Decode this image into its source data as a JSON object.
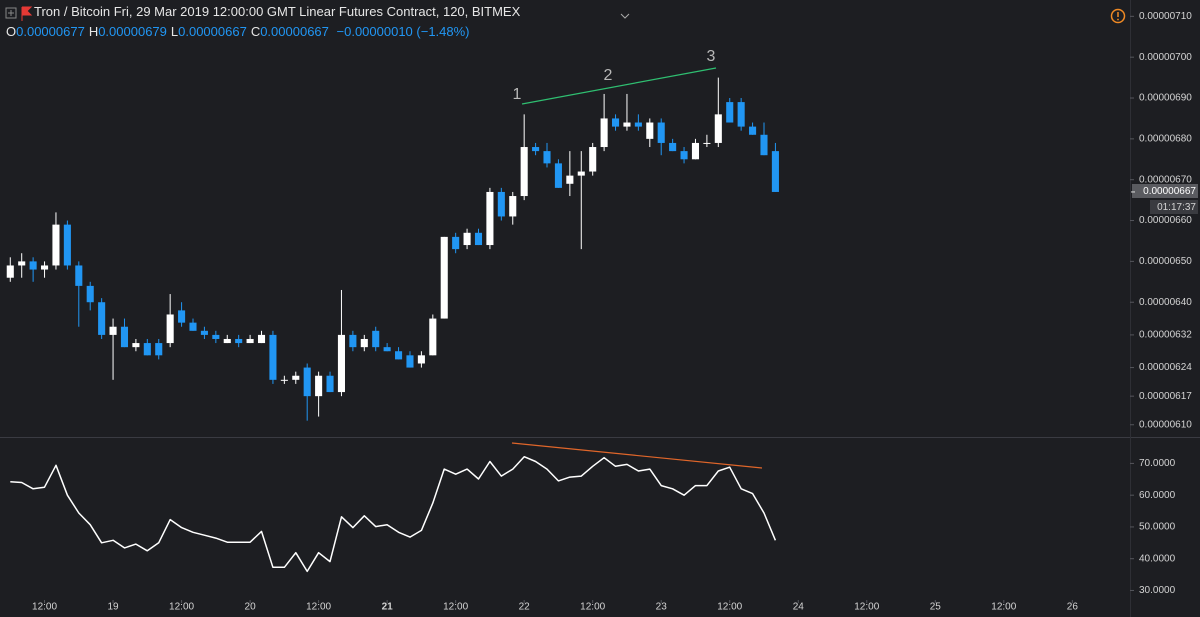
{
  "header": {
    "title": "Tron / Bitcoin Fri, 29 Mar 2019 12:00:00 GMT Linear Futures Contract, 120, BITMEX",
    "ohlc": [
      {
        "label": "O",
        "value": "0.00000677"
      },
      {
        "label": "H",
        "value": "0.00000679"
      },
      {
        "label": "L",
        "value": "0.00000667"
      },
      {
        "label": "C",
        "value": "0.00000667"
      }
    ],
    "change": "−0.00000010 (−1.48%)"
  },
  "chart_data": [
    {
      "type": "candlestick",
      "up_color": "#ffffff",
      "down_color": "#2196f3",
      "annotations": [
        "1",
        "2",
        "3"
      ],
      "last_price": {
        "value": 6.67e-06,
        "label": "0.00000667"
      },
      "countdown": "01:17:37",
      "open": [
        6.46e-06,
        6.49e-06,
        6.5e-06,
        6.48e-06,
        6.49e-06,
        6.59e-06,
        6.49e-06,
        6.44e-06,
        6.4e-06,
        6.32e-06,
        6.34e-06,
        6.29e-06,
        6.3e-06,
        6.3e-06,
        6.3e-06,
        6.38e-06,
        6.35e-06,
        6.33e-06,
        6.32e-06,
        6.3e-06,
        6.31e-06,
        6.3e-06,
        6.3e-06,
        6.32e-06,
        6.21e-06,
        6.21e-06,
        6.24e-06,
        6.17e-06,
        6.22e-06,
        6.18e-06,
        6.32e-06,
        6.29e-06,
        6.33e-06,
        6.29e-06,
        6.28e-06,
        6.27e-06,
        6.25e-06,
        6.27e-06,
        6.36e-06,
        6.56e-06,
        6.54e-06,
        6.57e-06,
        6.54e-06,
        6.67e-06,
        6.61e-06,
        6.66e-06,
        6.78e-06,
        6.77e-06,
        6.74e-06,
        6.69e-06,
        6.71e-06,
        6.72e-06,
        6.78e-06,
        6.85e-06,
        6.83e-06,
        6.84e-06,
        6.8e-06,
        6.84e-06,
        6.79e-06,
        6.77e-06,
        6.75e-06,
        6.79e-06,
        6.79e-06,
        6.89e-06,
        6.89e-06,
        6.83e-06,
        6.81e-06,
        6.77e-06
      ],
      "high": [
        6.51e-06,
        6.52e-06,
        6.51e-06,
        6.5e-06,
        6.62e-06,
        6.6e-06,
        6.5e-06,
        6.45e-06,
        6.41e-06,
        6.36e-06,
        6.36e-06,
        6.31e-06,
        6.31e-06,
        6.31e-06,
        6.42e-06,
        6.4e-06,
        6.36e-06,
        6.34e-06,
        6.33e-06,
        6.32e-06,
        6.32e-06,
        6.32e-06,
        6.33e-06,
        6.33e-06,
        6.22e-06,
        6.23e-06,
        6.25e-06,
        6.23e-06,
        6.23e-06,
        6.43e-06,
        6.33e-06,
        6.32e-06,
        6.34e-06,
        6.3e-06,
        6.29e-06,
        6.28e-06,
        6.28e-06,
        6.37e-06,
        6.56e-06,
        6.57e-06,
        6.58e-06,
        6.58e-06,
        6.68e-06,
        6.68e-06,
        6.67e-06,
        6.86e-06,
        6.79e-06,
        6.79e-06,
        6.75e-06,
        6.77e-06,
        6.77e-06,
        6.79e-06,
        6.91e-06,
        6.86e-06,
        6.91e-06,
        6.86e-06,
        6.85e-06,
        6.85e-06,
        6.8e-06,
        6.78e-06,
        6.8e-06,
        6.81e-06,
        6.95e-06,
        6.9e-06,
        6.9e-06,
        6.84e-06,
        6.84e-06,
        6.79e-06
      ],
      "low": [
        6.45e-06,
        6.46e-06,
        6.45e-06,
        6.46e-06,
        6.48e-06,
        6.48e-06,
        6.34e-06,
        6.38e-06,
        6.31e-06,
        6.21e-06,
        6.29e-06,
        6.28e-06,
        6.27e-06,
        6.26e-06,
        6.29e-06,
        6.34e-06,
        6.33e-06,
        6.31e-06,
        6.3e-06,
        6.3e-06,
        6.29e-06,
        6.3e-06,
        6.3e-06,
        6.2e-06,
        6.2e-06,
        6.2e-06,
        6.11e-06,
        6.12e-06,
        6.18e-06,
        6.17e-06,
        6.28e-06,
        6.28e-06,
        6.28e-06,
        6.28e-06,
        6.26e-06,
        6.24e-06,
        6.24e-06,
        6.27e-06,
        6.36e-06,
        6.52e-06,
        6.53e-06,
        6.54e-06,
        6.53e-06,
        6.6e-06,
        6.59e-06,
        6.65e-06,
        6.76e-06,
        6.73e-06,
        6.68e-06,
        6.66e-06,
        6.53e-06,
        6.71e-06,
        6.77e-06,
        6.82e-06,
        6.82e-06,
        6.82e-06,
        6.78e-06,
        6.76e-06,
        6.77e-06,
        6.74e-06,
        6.75e-06,
        6.78e-06,
        6.78e-06,
        6.84e-06,
        6.82e-06,
        6.81e-06,
        6.76e-06,
        6.67e-06
      ],
      "close": [
        6.49e-06,
        6.5e-06,
        6.48e-06,
        6.49e-06,
        6.59e-06,
        6.49e-06,
        6.44e-06,
        6.4e-06,
        6.32e-06,
        6.34e-06,
        6.29e-06,
        6.3e-06,
        6.27e-06,
        6.27e-06,
        6.37e-06,
        6.35e-06,
        6.33e-06,
        6.32e-06,
        6.31e-06,
        6.31e-06,
        6.3e-06,
        6.31e-06,
        6.32e-06,
        6.21e-06,
        6.21e-06,
        6.22e-06,
        6.17e-06,
        6.22e-06,
        6.18e-06,
        6.32e-06,
        6.29e-06,
        6.31e-06,
        6.29e-06,
        6.28e-06,
        6.26e-06,
        6.24e-06,
        6.27e-06,
        6.36e-06,
        6.56e-06,
        6.53e-06,
        6.57e-06,
        6.54e-06,
        6.67e-06,
        6.61e-06,
        6.66e-06,
        6.78e-06,
        6.77e-06,
        6.74e-06,
        6.68e-06,
        6.71e-06,
        6.72e-06,
        6.78e-06,
        6.85e-06,
        6.83e-06,
        6.84e-06,
        6.83e-06,
        6.84e-06,
        6.79e-06,
        6.77e-06,
        6.75e-06,
        6.79e-06,
        6.79e-06,
        6.86e-06,
        6.84e-06,
        6.83e-06,
        6.81e-06,
        6.76e-06,
        6.67e-06
      ],
      "xlim": [
        -0.9,
        98.05
      ],
      "ylim": [
        6.07e-06,
        7.14e-06
      ],
      "yticks": [
        {
          "value": 7.1e-06,
          "label": "0.00000710"
        },
        {
          "value": 7e-06,
          "label": "0.00000700"
        },
        {
          "value": 6.9e-06,
          "label": "0.00000690"
        },
        {
          "value": 6.8e-06,
          "label": "0.00000680"
        },
        {
          "value": 6.7e-06,
          "label": "0.00000670"
        },
        {
          "value": 6.6e-06,
          "label": "0.00000660"
        },
        {
          "value": 6.5e-06,
          "label": "0.00000650"
        },
        {
          "value": 6.4e-06,
          "label": "0.00000640"
        },
        {
          "value": 6.32e-06,
          "label": "0.00000632"
        },
        {
          "value": 6.24e-06,
          "label": "0.00000624"
        },
        {
          "value": 6.17e-06,
          "label": "0.00000617"
        },
        {
          "value": 6.1e-06,
          "label": "0.00000610"
        }
      ]
    },
    {
      "type": "line",
      "color": "#ffffff",
      "values": [
        64.2,
        64,
        62,
        62.5,
        69.4,
        60,
        54.4,
        50.7,
        45,
        45.8,
        43.4,
        44.6,
        42.5,
        45,
        52.3,
        49.8,
        48.3,
        47.4,
        46.5,
        45.2,
        45.2,
        45.2,
        48.6,
        37.3,
        37.3,
        41.9,
        36,
        41.9,
        39.1,
        53.2,
        49.8,
        53.5,
        50.1,
        50.7,
        48.3,
        46.8,
        48.9,
        57.5,
        68.2,
        66.6,
        68.2,
        65.1,
        70.6,
        66,
        68.2,
        72.1,
        70.6,
        68.2,
        64.5,
        65.7,
        66,
        69.1,
        71.8,
        69.1,
        69.7,
        67.6,
        68.2,
        63,
        62,
        60,
        63,
        63,
        67.6,
        68.8,
        62,
        60.5,
        54.4,
        45.8
      ],
      "xlim": [
        -0.9,
        98.05
      ],
      "ylim": [
        27,
        78
      ],
      "yticks": [
        {
          "value": 70,
          "label": "70.0000"
        },
        {
          "value": 60,
          "label": "60.0000"
        },
        {
          "value": 50,
          "label": "50.0000"
        },
        {
          "value": 40,
          "label": "40.0000"
        },
        {
          "value": 30,
          "label": "30.0000"
        }
      ],
      "xticks": [
        {
          "value": 3,
          "label": "12:00"
        },
        {
          "value": 9,
          "label": "19"
        },
        {
          "value": 15,
          "label": "12:00"
        },
        {
          "value": 21,
          "label": "20"
        },
        {
          "value": 27,
          "label": "12:00"
        },
        {
          "value": 33,
          "label": "21",
          "bold": true
        },
        {
          "value": 39,
          "label": "12:00"
        },
        {
          "value": 45,
          "label": "22"
        },
        {
          "value": 51,
          "label": "12:00"
        },
        {
          "value": 57,
          "label": "23"
        },
        {
          "value": 63,
          "label": "12:00"
        },
        {
          "value": 69,
          "label": "24"
        },
        {
          "value": 75,
          "label": "12:00"
        },
        {
          "value": 81,
          "label": "25"
        },
        {
          "value": 87,
          "label": "12:00"
        },
        {
          "value": 93,
          "label": "26"
        }
      ]
    }
  ]
}
